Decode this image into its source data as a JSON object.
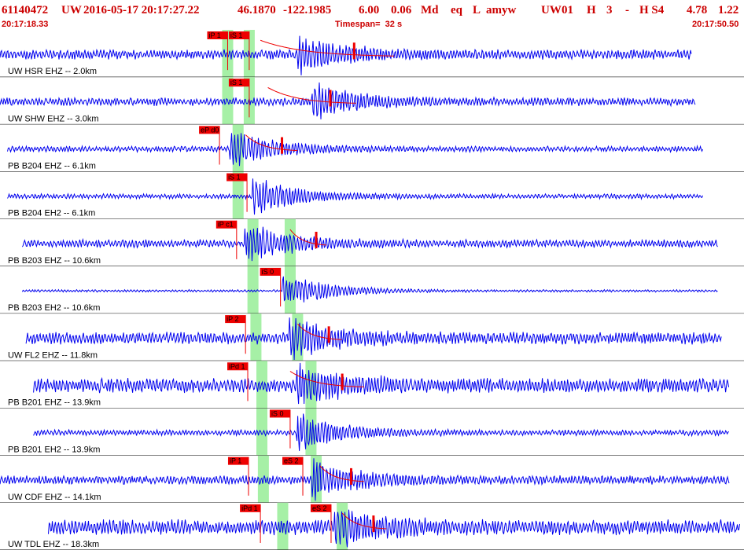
{
  "header": {
    "event_id": "61140472",
    "network": "UW",
    "datetime": "2016-05-17 20:17:27.22",
    "lat": "46.1870",
    "lon": "-122.1985",
    "depth": "6.00",
    "magnitude": "0.06",
    "mag_type": "Md",
    "event_type": "eq",
    "location_flag": "L",
    "author": "amyw",
    "sta_net": "UW",
    "sta_num": "01",
    "sta_h": "H",
    "sta_count": "3",
    "sta_dash": "-",
    "sta_hs": "H S4",
    "val1": "4.78",
    "val2": "1.22"
  },
  "subheader": {
    "start_time": "20:17:18.33",
    "timespan": "Timespan=  32 s",
    "end_time": "20:17:50.50"
  },
  "colors": {
    "trace": "#0000ee",
    "pick": "#ee0000",
    "coda": "#000000",
    "window": "#a6f0a6",
    "divider": "#000000",
    "header_text": "#cc0000"
  },
  "traces": [
    {
      "label": "UW HSR EHZ -- 2.0km",
      "amplitude": 0.6,
      "burst": 0.42,
      "picks": [
        {
          "text": "iP 1",
          "time": 0.306
        },
        {
          "text": "iS 1",
          "time": 0.335
        }
      ],
      "green": [
        0.306,
        0.335
      ],
      "coda": [
        0.35,
        0.53
      ],
      "noise_start": 0.0,
      "noise_end": 0.93
    },
    {
      "label": "UW SHW EHZ -- 3.0km",
      "amplitude": 0.5,
      "burst": 0.44,
      "picks": [
        {
          "text": "iS 1",
          "time": 0.335
        }
      ],
      "green": [
        0.306,
        0.335
      ],
      "coda": [
        0.36,
        0.48
      ],
      "noise_start": 0.0,
      "noise_end": 0.935
    },
    {
      "label": "PB B204 EHZ -- 6.1km",
      "amplitude": 0.35,
      "burst": 0.33,
      "picks": [
        {
          "text": "eP d0",
          "time": 0.295
        }
      ],
      "green": [
        0.32
      ],
      "coda": [
        0.33,
        0.4
      ],
      "noise_start": 0.01,
      "noise_end": 0.945
    },
    {
      "label": "PB B204 EH2 -- 6.1km",
      "amplitude": 0.3,
      "burst": 0.36,
      "picks": [
        {
          "text": "iS 1",
          "time": 0.332
        }
      ],
      "green": [
        0.32
      ],
      "coda": null,
      "noise_start": 0.01,
      "noise_end": 0.945
    },
    {
      "label": "PB B203 EHZ -- 10.6km",
      "amplitude": 0.5,
      "burst": 0.35,
      "picks": [
        {
          "text": "iP c1",
          "time": 0.318
        }
      ],
      "green": [
        0.34,
        0.39
      ],
      "coda": [
        0.39,
        0.44
      ],
      "noise_start": 0.03,
      "noise_end": 0.965
    },
    {
      "label": "PB B203 EH2 -- 10.6km",
      "amplitude": 0.15,
      "burst": 0.4,
      "picks": [
        {
          "text": "iS 0",
          "time": 0.377
        }
      ],
      "green": [
        0.34,
        0.39
      ],
      "coda": null,
      "noise_start": 0.03,
      "noise_end": 0.965
    },
    {
      "label": "UW FL2 EHZ -- 11.8km",
      "amplitude": 0.75,
      "burst": 0.41,
      "picks": [
        {
          "text": "iP 2",
          "time": 0.33
        }
      ],
      "green": [
        0.344,
        0.4
      ],
      "coda": [
        0.4,
        0.46
      ],
      "noise_start": 0.035,
      "noise_end": 0.97
    },
    {
      "label": "PB B201 EHZ -- 13.9km",
      "amplitude": 0.9,
      "burst": 0.42,
      "picks": [
        {
          "text": "iPd 1",
          "time": 0.333
        }
      ],
      "green": [
        0.352,
        0.418
      ],
      "coda": [
        0.39,
        0.49
      ],
      "noise_start": 0.045,
      "noise_end": 0.98
    },
    {
      "label": "PB B201 EH2 -- 13.9km",
      "amplitude": 0.35,
      "burst": 0.42,
      "picks": [
        {
          "text": "iS 0",
          "time": 0.39
        }
      ],
      "green": [
        0.352,
        0.418
      ],
      "coda": null,
      "noise_start": 0.045,
      "noise_end": 0.98
    },
    {
      "label": "UW CDF EHZ -- 14.1km",
      "amplitude": 0.55,
      "burst": 0.44,
      "picks": [
        {
          "text": "iP 1",
          "time": 0.334
        },
        {
          "text": "eS 2",
          "time": 0.407
        }
      ],
      "green": [
        0.354,
        0.425
      ],
      "coda": [
        0.43,
        0.49
      ],
      "noise_start": 0.0,
      "noise_end": 0.98
    },
    {
      "label": "UW TDL EHZ -- 18.3km",
      "amplitude": 0.95,
      "burst": 0.47,
      "picks": [
        {
          "text": "iPd 1",
          "time": 0.35
        },
        {
          "text": "eS 2",
          "time": 0.445
        }
      ],
      "green": [
        0.38,
        0.46
      ],
      "coda": [
        0.46,
        0.52
      ],
      "noise_start": 0.065,
      "noise_end": 0.995
    }
  ]
}
